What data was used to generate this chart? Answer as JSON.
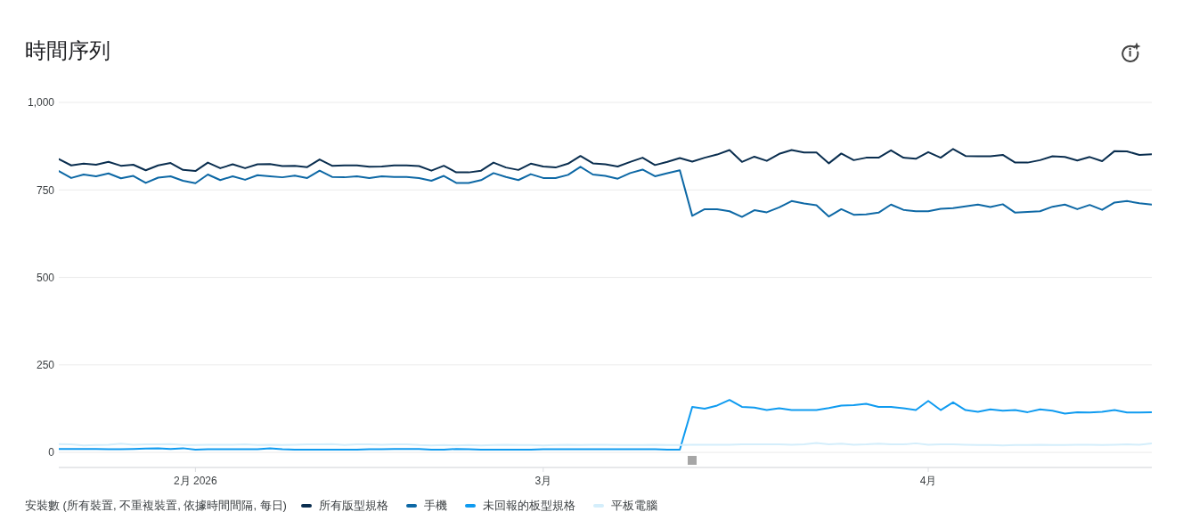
{
  "chart_data": {
    "type": "line",
    "title": "時間序列",
    "legend_title": "安裝數 (所有裝置, 不重複裝置, 依據時間間隔, 每日)",
    "legend": "bottom left",
    "grid": "y",
    "x": [
      "2026-01-21",
      "2026-01-22",
      "2026-01-23",
      "2026-01-24",
      "2026-01-25",
      "2026-01-26",
      "2026-01-27",
      "2026-01-28",
      "2026-01-29",
      "2026-01-30",
      "2026-01-31",
      "2026-02-01",
      "2026-02-02",
      "2026-02-03",
      "2026-02-04",
      "2026-02-05",
      "2026-02-06",
      "2026-02-07",
      "2026-02-08",
      "2026-02-09",
      "2026-02-10",
      "2026-02-11",
      "2026-02-12",
      "2026-02-13",
      "2026-02-14",
      "2026-02-15",
      "2026-02-16",
      "2026-02-17",
      "2026-02-18",
      "2026-02-19",
      "2026-02-20",
      "2026-02-21",
      "2026-02-22",
      "2026-02-23",
      "2026-02-24",
      "2026-02-25",
      "2026-02-26",
      "2026-02-27",
      "2026-02-28",
      "2026-03-01",
      "2026-03-02",
      "2026-03-03",
      "2026-03-04",
      "2026-03-05",
      "2026-03-06",
      "2026-03-07",
      "2026-03-08",
      "2026-03-09",
      "2026-03-10",
      "2026-03-11",
      "2026-03-12",
      "2026-03-13",
      "2026-03-14",
      "2026-03-15",
      "2026-03-16",
      "2026-03-17",
      "2026-03-18",
      "2026-03-19",
      "2026-03-20",
      "2026-03-21",
      "2026-03-22",
      "2026-03-23",
      "2026-03-24",
      "2026-03-25",
      "2026-03-26",
      "2026-03-27",
      "2026-03-28",
      "2026-03-29",
      "2026-03-30",
      "2026-03-31",
      "2026-04-01",
      "2026-04-02",
      "2026-04-03",
      "2026-04-04",
      "2026-04-05",
      "2026-04-06",
      "2026-04-07",
      "2026-04-08",
      "2026-04-09",
      "2026-04-10",
      "2026-04-11",
      "2026-04-12",
      "2026-04-13",
      "2026-04-14",
      "2026-04-15",
      "2026-04-16",
      "2026-04-17",
      "2026-04-18",
      "2026-04-19"
    ],
    "xlim": [
      "2026-01-21",
      "2026-04-19"
    ],
    "xticks": [
      {
        "value": "2026-02-01",
        "label": "2月 2026"
      },
      {
        "value": "2026-03-01",
        "label": "3月"
      },
      {
        "value": "2026-04-01",
        "label": "4月"
      }
    ],
    "ylim": [
      -43,
      1000
    ],
    "yticks": [
      0,
      250,
      500,
      750,
      {
        "value": 1000,
        "label": "1,000"
      }
    ],
    "series": [
      {
        "name": "所有版型規格",
        "color": "#0a2e4f",
        "values": [
          838,
          820,
          825,
          822,
          830,
          819,
          822,
          806,
          820,
          827,
          807,
          804,
          828,
          812,
          823,
          812,
          823,
          824,
          818,
          819,
          815,
          837,
          819,
          820,
          820,
          816,
          817,
          820,
          820,
          818,
          805,
          819,
          800,
          800,
          805,
          828,
          814,
          807,
          825,
          817,
          814,
          825,
          847,
          826,
          823,
          817,
          830,
          842,
          821,
          830,
          841,
          831,
          842,
          851,
          864,
          830,
          845,
          833,
          853,
          864,
          857,
          857,
          826,
          854,
          835,
          842,
          842,
          863,
          842,
          839,
          858,
          842,
          867,
          847,
          846,
          846,
          850,
          828,
          828,
          835,
          846,
          844,
          834,
          844,
          832,
          861,
          860,
          850,
          852
        ]
      },
      {
        "name": "手機",
        "color": "#0d68a5",
        "values": [
          804,
          784,
          794,
          789,
          797,
          783,
          790,
          770,
          785,
          789,
          776,
          769,
          794,
          778,
          789,
          779,
          792,
          789,
          786,
          791,
          784,
          805,
          787,
          786,
          789,
          784,
          789,
          787,
          787,
          784,
          776,
          790,
          770,
          770,
          778,
          798,
          787,
          778,
          795,
          784,
          784,
          793,
          816,
          794,
          790,
          782,
          798,
          808,
          789,
          798,
          806,
          676,
          695,
          695,
          689,
          673,
          692,
          686,
          700,
          718,
          711,
          706,
          674,
          695,
          679,
          680,
          685,
          708,
          693,
          689,
          689,
          696,
          698,
          703,
          708,
          701,
          709,
          685,
          687,
          689,
          702,
          708,
          695,
          707,
          693,
          714,
          718,
          712,
          708
        ]
      },
      {
        "name": "未回報的板型規格",
        "color": "#0f9bf0",
        "values": [
          10,
          10,
          10,
          10,
          9,
          9,
          10,
          11,
          12,
          10,
          12,
          8,
          9,
          9,
          9,
          9,
          9,
          12,
          9,
          8,
          8,
          8,
          8,
          8,
          8,
          9,
          9,
          10,
          10,
          10,
          8,
          8,
          10,
          9,
          8,
          8,
          8,
          8,
          8,
          9,
          9,
          9,
          9,
          9,
          9,
          9,
          9,
          9,
          9,
          8,
          8,
          130,
          125,
          134,
          150,
          130,
          128,
          121,
          126,
          121,
          121,
          121,
          127,
          134,
          135,
          139,
          130,
          130,
          126,
          121,
          147,
          121,
          143,
          121,
          116,
          123,
          119,
          121,
          115,
          123,
          119,
          111,
          115,
          114,
          116,
          121,
          114,
          114,
          115
        ]
      },
      {
        "name": "平板電腦",
        "color": "#d4eefb",
        "values": [
          24,
          23,
          20,
          21,
          22,
          25,
          22,
          23,
          23,
          24,
          21,
          21,
          22,
          22,
          22,
          23,
          21,
          22,
          21,
          22,
          23,
          23,
          24,
          21,
          23,
          23,
          22,
          23,
          23,
          21,
          20,
          21,
          20,
          21,
          20,
          21,
          22,
          21,
          21,
          20,
          21,
          22,
          21,
          22,
          22,
          21,
          21,
          21,
          22,
          21,
          21,
          22,
          22,
          22,
          22,
          23,
          23,
          23,
          23,
          22,
          23,
          27,
          23,
          25,
          22,
          23,
          25,
          23,
          23,
          26,
          22,
          23,
          23,
          22,
          21,
          21,
          20,
          21,
          21,
          22,
          21,
          21,
          22,
          22,
          21,
          22,
          23,
          22,
          26
        ]
      }
    ]
  }
}
